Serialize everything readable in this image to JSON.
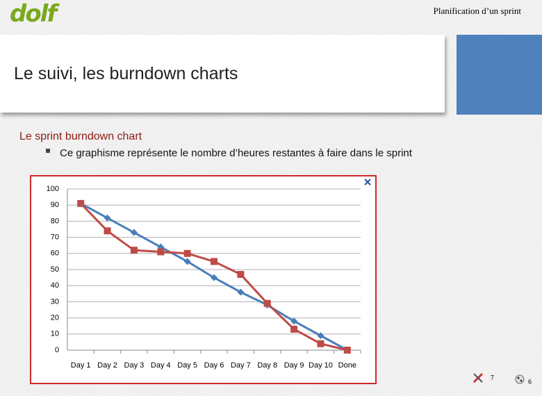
{
  "header": {
    "logo": "dolf",
    "topic": "Planification d’un sprint",
    "title": "Le suivi, les burndown charts"
  },
  "content": {
    "heading": "Le sprint burndown chart",
    "bullet": "Ce graphisme représente le nombre d’heures restantes à faire dans le sprint"
  },
  "footer": {
    "page_left": "7",
    "page_right": "6"
  },
  "chart_data": {
    "type": "line",
    "categories": [
      "Day 1",
      "Day 2",
      "Day 3",
      "Day 4",
      "Day 5",
      "Day 6",
      "Day 7",
      "Day 8",
      "Day 9",
      "Day 10",
      "Done"
    ],
    "series": [
      {
        "color": "#4a7ebb",
        "marker": "diamond",
        "values": [
          91,
          82,
          73,
          64,
          55,
          45,
          36,
          28,
          18,
          9,
          0
        ]
      },
      {
        "color": "#be4b48",
        "marker": "square",
        "values": [
          91,
          74,
          62,
          61,
          60,
          55,
          47,
          29,
          13,
          4,
          0
        ]
      }
    ],
    "ylim": [
      0,
      100
    ],
    "yticks": [
      0,
      10,
      20,
      30,
      40,
      50,
      60,
      70,
      80,
      90,
      100
    ],
    "grid": true
  }
}
